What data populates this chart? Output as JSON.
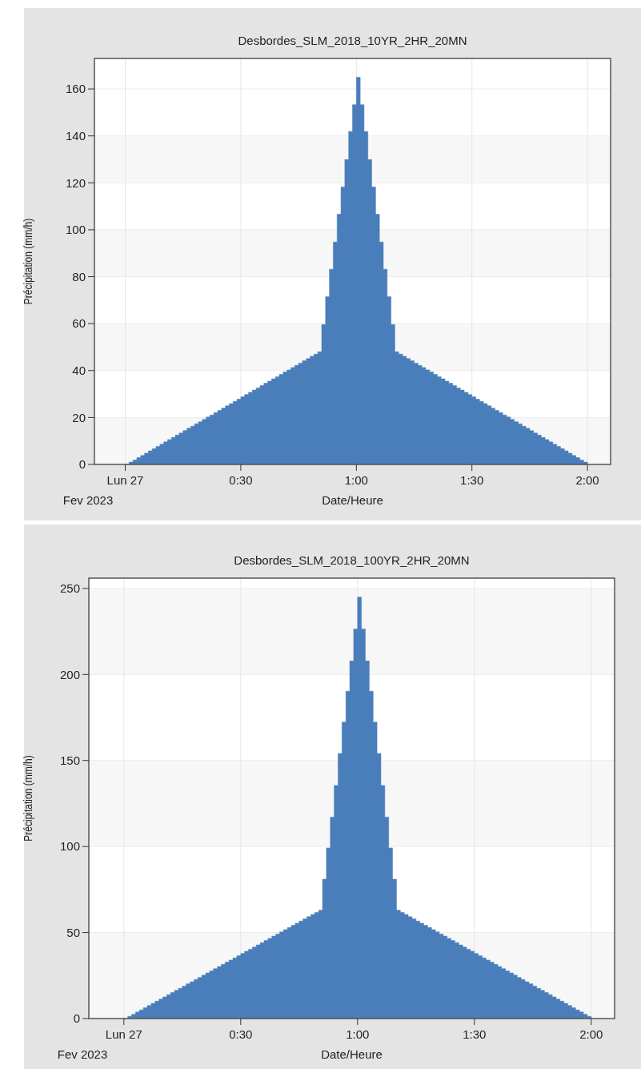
{
  "chart_data": [
    {
      "type": "area",
      "title": "Desbordes_SLM_2018_10YR_2HR_20MN",
      "xlabel": "Date/Heure",
      "ylabel": "Précipitation (mm/h)",
      "x": [
        "2023-02-27T00:00",
        "2023-02-27T00:01",
        "2023-02-27T00:02",
        "2023-02-27T00:03",
        "2023-02-27T00:04",
        "2023-02-27T00:05",
        "2023-02-27T00:06",
        "2023-02-27T00:07",
        "2023-02-27T00:08",
        "2023-02-27T00:09",
        "2023-02-27T00:10",
        "2023-02-27T00:11",
        "2023-02-27T00:12",
        "2023-02-27T00:13",
        "2023-02-27T00:14",
        "2023-02-27T00:15",
        "2023-02-27T00:16",
        "2023-02-27T00:17",
        "2023-02-27T00:18",
        "2023-02-27T00:19",
        "2023-02-27T00:20",
        "2023-02-27T00:21",
        "2023-02-27T00:22",
        "2023-02-27T00:23",
        "2023-02-27T00:24",
        "2023-02-27T00:25",
        "2023-02-27T00:26",
        "2023-02-27T00:27",
        "2023-02-27T00:28",
        "2023-02-27T00:29",
        "2023-02-27T00:30",
        "2023-02-27T00:31",
        "2023-02-27T00:32",
        "2023-02-27T00:33",
        "2023-02-27T00:34",
        "2023-02-27T00:35",
        "2023-02-27T00:36",
        "2023-02-27T00:37",
        "2023-02-27T00:38",
        "2023-02-27T00:39",
        "2023-02-27T00:40",
        "2023-02-27T00:41",
        "2023-02-27T00:42",
        "2023-02-27T00:43",
        "2023-02-27T00:44",
        "2023-02-27T00:45",
        "2023-02-27T00:46",
        "2023-02-27T00:47",
        "2023-02-27T00:48",
        "2023-02-27T00:49",
        "2023-02-27T00:50",
        "2023-02-27T00:51",
        "2023-02-27T00:52",
        "2023-02-27T00:53",
        "2023-02-27T00:54",
        "2023-02-27T00:55",
        "2023-02-27T00:56",
        "2023-02-27T00:57",
        "2023-02-27T00:58",
        "2023-02-27T00:59",
        "2023-02-27T01:00",
        "2023-02-27T01:01",
        "2023-02-27T01:02",
        "2023-02-27T01:03",
        "2023-02-27T01:04",
        "2023-02-27T01:05",
        "2023-02-27T01:06",
        "2023-02-27T01:07",
        "2023-02-27T01:08",
        "2023-02-27T01:09",
        "2023-02-27T01:10",
        "2023-02-27T01:11",
        "2023-02-27T01:12",
        "2023-02-27T01:13",
        "2023-02-27T01:14",
        "2023-02-27T01:15",
        "2023-02-27T01:16",
        "2023-02-27T01:17",
        "2023-02-27T01:18",
        "2023-02-27T01:19",
        "2023-02-27T01:20",
        "2023-02-27T01:21",
        "2023-02-27T01:22",
        "2023-02-27T01:23",
        "2023-02-27T01:24",
        "2023-02-27T01:25",
        "2023-02-27T01:26",
        "2023-02-27T01:27",
        "2023-02-27T01:28",
        "2023-02-27T01:29",
        "2023-02-27T01:30",
        "2023-02-27T01:31",
        "2023-02-27T01:32",
        "2023-02-27T01:33",
        "2023-02-27T01:34",
        "2023-02-27T01:35",
        "2023-02-27T01:36",
        "2023-02-27T01:37",
        "2023-02-27T01:38",
        "2023-02-27T01:39",
        "2023-02-27T01:40",
        "2023-02-27T01:41",
        "2023-02-27T01:42",
        "2023-02-27T01:43",
        "2023-02-27T01:44",
        "2023-02-27T01:45",
        "2023-02-27T01:46",
        "2023-02-27T01:47",
        "2023-02-27T01:48",
        "2023-02-27T01:49",
        "2023-02-27T01:50",
        "2023-02-27T01:51",
        "2023-02-27T01:52",
        "2023-02-27T01:53",
        "2023-02-27T01:54",
        "2023-02-27T01:55",
        "2023-02-27T01:56",
        "2023-02-27T01:57",
        "2023-02-27T01:58",
        "2023-02-27T01:59",
        "2023-02-27T02:00"
      ],
      "series": [
        {
          "color": "#4a7ebb",
          "values": [
            0,
            1.0,
            1.9,
            2.9,
            3.8,
            4.8,
            5.8,
            6.7,
            7.7,
            8.6,
            9.6,
            10.6,
            11.5,
            12.5,
            13.4,
            14.4,
            15.4,
            16.3,
            17.3,
            18.2,
            19.2,
            20.2,
            21.1,
            22.1,
            23,
            24,
            25,
            25.9,
            26.9,
            27.8,
            28.8,
            29.8,
            30.7,
            31.7,
            32.6,
            33.6,
            34.6,
            35.5,
            36.5,
            37.4,
            38.4,
            39.4,
            40.3,
            41.3,
            42.2,
            43.2,
            44.2,
            45.1,
            46.1,
            47,
            48,
            59.6,
            71.5,
            83.2,
            94.8,
            106.6,
            118.2,
            129.9,
            141.9,
            153.3,
            165,
            153.3,
            141.9,
            129.9,
            118.2,
            106.6,
            94.8,
            83.2,
            71.5,
            59.6,
            48,
            47,
            46.1,
            45.1,
            44.2,
            43.2,
            42.2,
            41.3,
            40.3,
            39.4,
            38.4,
            37.4,
            36.5,
            35.5,
            34.6,
            33.6,
            32.6,
            31.7,
            30.7,
            29.8,
            28.8,
            27.8,
            26.9,
            25.9,
            25,
            24,
            23,
            22.1,
            21.1,
            20.2,
            19.2,
            18.2,
            17.3,
            16.3,
            15.4,
            14.4,
            13.4,
            12.5,
            11.5,
            10.6,
            9.6,
            8.6,
            7.7,
            6.7,
            5.8,
            4.8,
            3.8,
            2.9,
            1.9,
            1.0,
            0
          ]
        }
      ],
      "xlim": [
        "2023-02-26T23:52",
        "2023-02-27T02:06"
      ],
      "xticks": [
        {
          "value": "2023-02-27T00:00",
          "label": "Lun 27"
        },
        {
          "value": "2023-02-27T00:30",
          "label": "0:30"
        },
        {
          "value": "2023-02-27T01:00",
          "label": "1:00"
        },
        {
          "value": "2023-02-27T01:30",
          "label": "1:30"
        },
        {
          "value": "2023-02-27T02:00",
          "label": "2:00"
        }
      ],
      "ylim": [
        0,
        173
      ],
      "yticks": [
        0,
        20,
        40,
        60,
        80,
        100,
        120,
        140,
        160
      ],
      "grid": true,
      "annotations": [
        "Fev 2023"
      ]
    },
    {
      "type": "area",
      "title": "Desbordes_SLM_2018_100YR_2HR_20MN",
      "xlabel": "Date/Heure",
      "ylabel": "Précipitation (mm/h)",
      "x": [
        "2023-02-27T00:00",
        "2023-02-27T00:01",
        "2023-02-27T00:02",
        "2023-02-27T00:03",
        "2023-02-27T00:04",
        "2023-02-27T00:05",
        "2023-02-27T00:06",
        "2023-02-27T00:07",
        "2023-02-27T00:08",
        "2023-02-27T00:09",
        "2023-02-27T00:10",
        "2023-02-27T00:11",
        "2023-02-27T00:12",
        "2023-02-27T00:13",
        "2023-02-27T00:14",
        "2023-02-27T00:15",
        "2023-02-27T00:16",
        "2023-02-27T00:17",
        "2023-02-27T00:18",
        "2023-02-27T00:19",
        "2023-02-27T00:20",
        "2023-02-27T00:21",
        "2023-02-27T00:22",
        "2023-02-27T00:23",
        "2023-02-27T00:24",
        "2023-02-27T00:25",
        "2023-02-27T00:26",
        "2023-02-27T00:27",
        "2023-02-27T00:28",
        "2023-02-27T00:29",
        "2023-02-27T00:30",
        "2023-02-27T00:31",
        "2023-02-27T00:32",
        "2023-02-27T00:33",
        "2023-02-27T00:34",
        "2023-02-27T00:35",
        "2023-02-27T00:36",
        "2023-02-27T00:37",
        "2023-02-27T00:38",
        "2023-02-27T00:39",
        "2023-02-27T00:40",
        "2023-02-27T00:41",
        "2023-02-27T00:42",
        "2023-02-27T00:43",
        "2023-02-27T00:44",
        "2023-02-27T00:45",
        "2023-02-27T00:46",
        "2023-02-27T00:47",
        "2023-02-27T00:48",
        "2023-02-27T00:49",
        "2023-02-27T00:50",
        "2023-02-27T00:51",
        "2023-02-27T00:52",
        "2023-02-27T00:53",
        "2023-02-27T00:54",
        "2023-02-27T00:55",
        "2023-02-27T00:56",
        "2023-02-27T00:57",
        "2023-02-27T00:58",
        "2023-02-27T00:59",
        "2023-02-27T01:00",
        "2023-02-27T01:01",
        "2023-02-27T01:02",
        "2023-02-27T01:03",
        "2023-02-27T01:04",
        "2023-02-27T01:05",
        "2023-02-27T01:06",
        "2023-02-27T01:07",
        "2023-02-27T01:08",
        "2023-02-27T01:09",
        "2023-02-27T01:10",
        "2023-02-27T01:11",
        "2023-02-27T01:12",
        "2023-02-27T01:13",
        "2023-02-27T01:14",
        "2023-02-27T01:15",
        "2023-02-27T01:16",
        "2023-02-27T01:17",
        "2023-02-27T01:18",
        "2023-02-27T01:19",
        "2023-02-27T01:20",
        "2023-02-27T01:21",
        "2023-02-27T01:22",
        "2023-02-27T01:23",
        "2023-02-27T01:24",
        "2023-02-27T01:25",
        "2023-02-27T01:26",
        "2023-02-27T01:27",
        "2023-02-27T01:28",
        "2023-02-27T01:29",
        "2023-02-27T01:30",
        "2023-02-27T01:31",
        "2023-02-27T01:32",
        "2023-02-27T01:33",
        "2023-02-27T01:34",
        "2023-02-27T01:35",
        "2023-02-27T01:36",
        "2023-02-27T01:37",
        "2023-02-27T01:38",
        "2023-02-27T01:39",
        "2023-02-27T01:40",
        "2023-02-27T01:41",
        "2023-02-27T01:42",
        "2023-02-27T01:43",
        "2023-02-27T01:44",
        "2023-02-27T01:45",
        "2023-02-27T01:46",
        "2023-02-27T01:47",
        "2023-02-27T01:48",
        "2023-02-27T01:49",
        "2023-02-27T01:50",
        "2023-02-27T01:51",
        "2023-02-27T01:52",
        "2023-02-27T01:53",
        "2023-02-27T01:54",
        "2023-02-27T01:55",
        "2023-02-27T01:56",
        "2023-02-27T01:57",
        "2023-02-27T01:58",
        "2023-02-27T01:59",
        "2023-02-27T02:00"
      ],
      "series": [
        {
          "color": "#4a7ebb",
          "values": [
            0,
            1.3,
            2.5,
            3.8,
            5,
            6.3,
            7.6,
            8.8,
            10.1,
            11.3,
            12.6,
            13.9,
            15.1,
            16.4,
            17.6,
            18.9,
            20.2,
            21.4,
            22.7,
            23.9,
            25.2,
            26.5,
            27.7,
            29,
            30.2,
            31.5,
            32.8,
            34,
            35.3,
            36.5,
            37.8,
            39.1,
            40.3,
            41.6,
            42.8,
            44.1,
            45.4,
            46.6,
            47.9,
            49.1,
            50.4,
            51.7,
            52.9,
            54.2,
            55.4,
            56.7,
            58,
            59.2,
            60.5,
            61.7,
            63,
            81,
            99.2,
            117.1,
            135.5,
            154.1,
            172.3,
            190.3,
            207.9,
            226.4,
            245,
            226.4,
            207.9,
            190.3,
            172.3,
            154.1,
            135.5,
            117.1,
            99.2,
            81,
            63,
            61.7,
            60.5,
            59.2,
            58,
            56.7,
            55.4,
            54.2,
            52.9,
            51.7,
            50.4,
            49.1,
            47.9,
            46.6,
            45.4,
            44.1,
            42.8,
            41.6,
            40.3,
            39.1,
            37.8,
            36.5,
            35.3,
            34,
            32.8,
            31.5,
            30.2,
            29,
            27.7,
            26.5,
            25.2,
            23.9,
            22.7,
            21.4,
            20.2,
            18.9,
            17.6,
            16.4,
            15.1,
            13.9,
            12.6,
            11.3,
            10.1,
            8.8,
            7.6,
            6.3,
            5,
            3.8,
            2.5,
            1.3,
            0
          ]
        }
      ],
      "xlim": [
        "2023-02-26T23:51",
        "2023-02-27T02:06"
      ],
      "xticks": [
        {
          "value": "2023-02-27T00:00",
          "label": "Lun 27"
        },
        {
          "value": "2023-02-27T00:30",
          "label": "0:30"
        },
        {
          "value": "2023-02-27T01:00",
          "label": "1:00"
        },
        {
          "value": "2023-02-27T01:30",
          "label": "1:30"
        },
        {
          "value": "2023-02-27T02:00",
          "label": "2:00"
        }
      ],
      "ylim": [
        0,
        256
      ],
      "yticks": [
        0,
        50,
        100,
        150,
        200,
        250
      ],
      "grid": true,
      "annotations": [
        "Fev 2023"
      ]
    }
  ]
}
